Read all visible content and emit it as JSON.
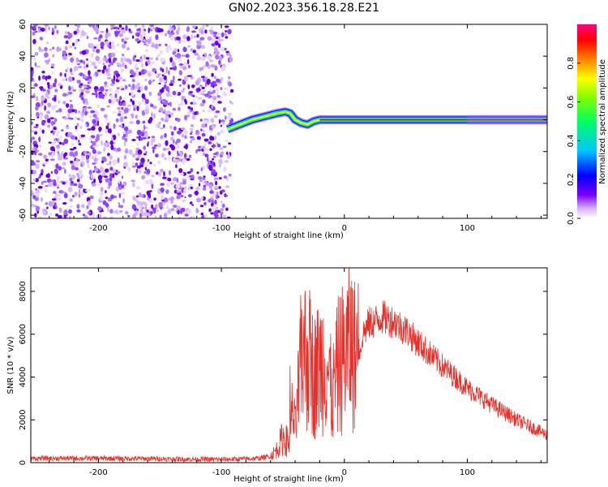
{
  "title": "GN02.2023.356.18.28.E21",
  "colors": {
    "snr_line": "#e8302a",
    "noise": "#6a00e0",
    "ridge_core": "#d80000",
    "ridge_edge": "#00c8ff"
  },
  "chart_data": [
    {
      "type": "heatmap",
      "xlabel": "Height of straight line (km)",
      "ylabel": "Frequency (Hz)",
      "xlim": [
        -255,
        165
      ],
      "ylim": [
        -62,
        60
      ],
      "xticks": [
        -200,
        -100,
        0,
        100
      ],
      "yticks": [
        60,
        40,
        20,
        0,
        -20,
        -40,
        -60
      ],
      "colorbar": {
        "label": "Normalized spectral amplitude",
        "ticks": [
          "0.0",
          "0.2",
          "0.4",
          "0.6",
          "0.8"
        ],
        "range": [
          0,
          1
        ]
      },
      "noise_region_x": [
        -255,
        -90
      ],
      "ridge": {
        "x": [
          -95,
          -85,
          -75,
          -65,
          -55,
          -48,
          -44,
          -40,
          -35,
          -30,
          -25,
          -20,
          -10,
          0,
          30,
          60,
          100,
          130,
          165
        ],
        "y": [
          -6,
          -3,
          0,
          2,
          4,
          5,
          4,
          0,
          -2,
          -3,
          -1,
          0,
          0,
          0,
          0,
          0,
          0,
          0,
          0
        ]
      }
    },
    {
      "type": "line",
      "xlabel": "Height of straight line (km)",
      "ylabel": "SNR (10 * v/v)",
      "xlim": [
        -255,
        165
      ],
      "ylim": [
        0,
        9100
      ],
      "xticks": [
        -200,
        -100,
        0,
        100
      ],
      "yticks": [
        0,
        2000,
        4000,
        6000,
        8000
      ],
      "series": [
        {
          "x": [
            -255,
            -200,
            -150,
            -110,
            -90,
            -70,
            -60,
            -55,
            -50,
            -45,
            -42,
            -40,
            -35,
            -30,
            -25,
            -20,
            -15,
            -10,
            -5,
            0,
            5,
            10,
            15,
            20,
            25,
            30,
            40,
            50,
            60,
            80,
            100,
            120,
            140,
            165
          ],
          "y": [
            200,
            200,
            180,
            150,
            160,
            200,
            300,
            600,
            1200,
            900,
            2500,
            1500,
            4800,
            5200,
            4000,
            4500,
            5000,
            3000,
            4500,
            5000,
            5500,
            4800,
            6000,
            6500,
            6600,
            6800,
            6600,
            6200,
            5600,
            4500,
            3500,
            2700,
            2000,
            1300
          ]
        }
      ]
    }
  ]
}
